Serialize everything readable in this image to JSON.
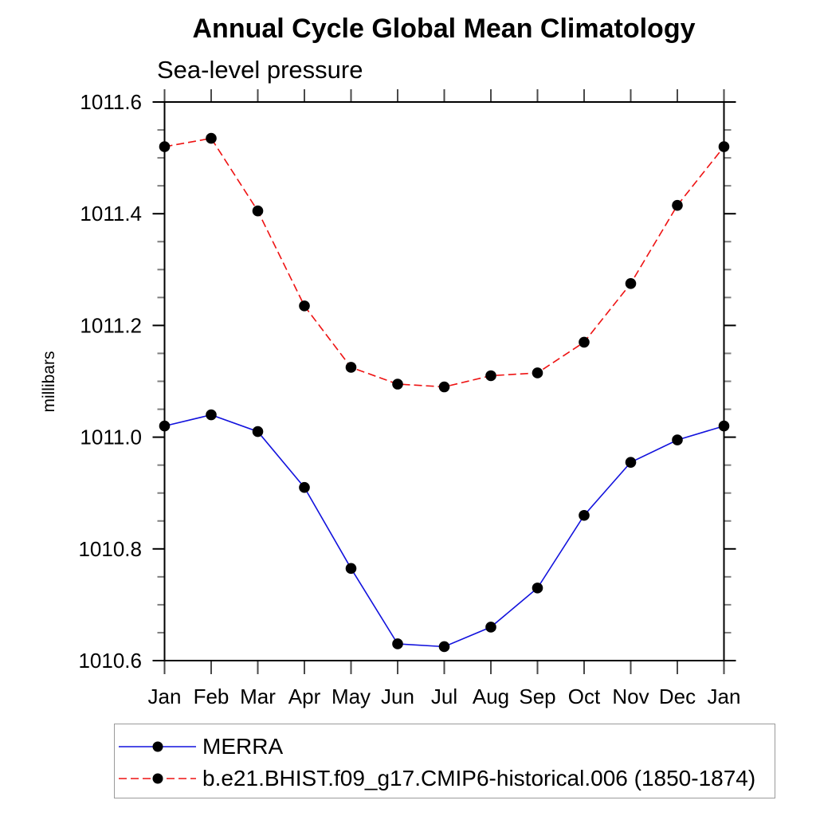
{
  "page": {
    "background": "#ffffff"
  },
  "chart_data": {
    "type": "line",
    "title": "Annual Cycle Global Mean Climatology",
    "subtitle": "Sea-level pressure",
    "ylabel": "millibars",
    "xlabel": "",
    "categories": [
      "Jan",
      "Feb",
      "Mar",
      "Apr",
      "May",
      "Jun",
      "Jul",
      "Aug",
      "Sep",
      "Oct",
      "Nov",
      "Dec",
      "Jan"
    ],
    "ylim": [
      1010.6,
      1011.6
    ],
    "ytick_labels": [
      "1011.6",
      "1011.4",
      "1011.2",
      "1011.0",
      "1010.8",
      "1010.6"
    ],
    "ytick_major_step": 0.2,
    "ytick_minor_step": 0.05,
    "grid": false,
    "legend_position": "bottom-left-box",
    "axis_color": "#000000",
    "minor_tick_color": "#7d7d7d",
    "month_tick_color": "#4a4a4a",
    "marker_color": "#000000",
    "series": [
      {
        "name": "MERRA",
        "color": "#1212dd",
        "line_style": "solid",
        "marker": "filled-circle",
        "marker_color": "#000000",
        "values": [
          1011.02,
          1011.04,
          1011.01,
          1010.91,
          1010.765,
          1010.63,
          1010.625,
          1010.66,
          1010.73,
          1010.86,
          1010.955,
          1010.995,
          1011.02
        ]
      },
      {
        "name": "b.e21.BHIST.f09_g17.CMIP6-historical.006 (1850-1874)",
        "color": "#ee1212",
        "line_style": "dashed",
        "marker": "filled-circle",
        "marker_color": "#000000",
        "values": [
          1011.52,
          1011.535,
          1011.405,
          1011.235,
          1011.125,
          1011.095,
          1011.09,
          1011.11,
          1011.115,
          1011.17,
          1011.275,
          1011.415,
          1011.52
        ]
      }
    ]
  }
}
